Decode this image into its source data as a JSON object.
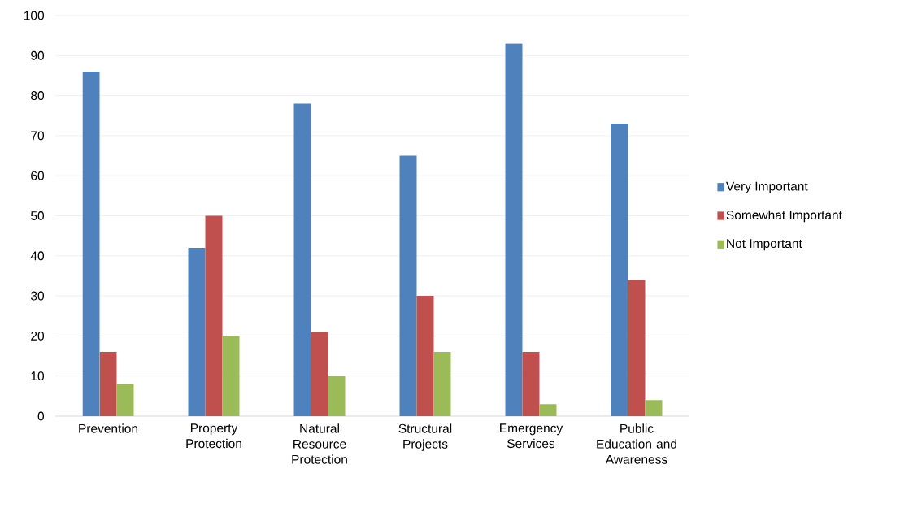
{
  "chart_data": {
    "type": "bar",
    "categories": [
      "Prevention",
      "Property Protection",
      "Natural Resource Protection",
      "Structural Projects",
      "Emergency Services",
      "Public Education and Awareness"
    ],
    "series": [
      {
        "name": "Very Important",
        "color": "#4f81bd",
        "values": [
          86,
          42,
          78,
          65,
          93,
          73
        ]
      },
      {
        "name": "Somewhat Important",
        "color": "#c0504d",
        "values": [
          16,
          50,
          21,
          30,
          16,
          34
        ]
      },
      {
        "name": "Not Important",
        "color": "#9bbb59",
        "values": [
          8,
          20,
          10,
          16,
          3,
          4
        ]
      }
    ],
    "ylim": [
      0,
      100
    ],
    "yticks": [
      0,
      10,
      20,
      30,
      40,
      50,
      60,
      70,
      80,
      90,
      100
    ],
    "grid": "y",
    "legend": "right"
  }
}
